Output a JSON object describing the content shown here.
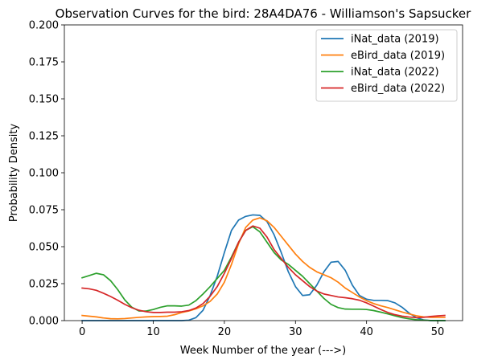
{
  "chart_data": {
    "type": "line",
    "title": "Observation Curves for the bird: 28A4DA76 - Williamson's Sapsucker",
    "xlabel": "Week Number of the year (--->)",
    "ylabel": "Probability Density",
    "xlim": [
      -2.5,
      53.5
    ],
    "ylim": [
      0,
      0.2
    ],
    "xticks": [
      0,
      10,
      20,
      30,
      40,
      50
    ],
    "xtick_labels": [
      "0",
      "10",
      "20",
      "30",
      "40",
      "50"
    ],
    "yticks": [
      0,
      0.025,
      0.05,
      0.075,
      0.1,
      0.125,
      0.15,
      0.175,
      0.2
    ],
    "ytick_labels": [
      "0.000",
      "0.025",
      "0.050",
      "0.075",
      "0.100",
      "0.125",
      "0.150",
      "0.175",
      "0.200"
    ],
    "grid": false,
    "legend_position": "top-right",
    "series": [
      {
        "name": "iNat_data (2019)",
        "color": "#1f77b4",
        "x": [
          0,
          1,
          2,
          3,
          4,
          5,
          6,
          7,
          8,
          9,
          10,
          11,
          12,
          13,
          14,
          15,
          16,
          17,
          18,
          19,
          20,
          21,
          22,
          23,
          24,
          25,
          26,
          27,
          28,
          29,
          30,
          31,
          32,
          33,
          34,
          35,
          36,
          37,
          38,
          39,
          40,
          41,
          42,
          43,
          44,
          45,
          46,
          47,
          48,
          49,
          50,
          51
        ],
        "y": [
          0,
          0,
          0,
          0,
          0,
          0,
          0,
          0,
          0,
          0,
          0,
          0,
          0,
          0,
          0,
          0.0003,
          0.002,
          0.007,
          0.017,
          0.03,
          0.046,
          0.061,
          0.068,
          0.0705,
          0.0715,
          0.0712,
          0.067,
          0.058,
          0.046,
          0.033,
          0.023,
          0.017,
          0.0175,
          0.024,
          0.033,
          0.0395,
          0.04,
          0.034,
          0.024,
          0.017,
          0.0145,
          0.0137,
          0.0137,
          0.0135,
          0.012,
          0.009,
          0.005,
          0.002,
          0.0005,
          0,
          0,
          0
        ]
      },
      {
        "name": "eBird_data (2019)",
        "color": "#ff7f0e",
        "x": [
          0,
          1,
          2,
          3,
          4,
          5,
          6,
          7,
          8,
          9,
          10,
          11,
          12,
          13,
          14,
          15,
          16,
          17,
          18,
          19,
          20,
          21,
          22,
          23,
          24,
          25,
          26,
          27,
          28,
          29,
          30,
          31,
          32,
          33,
          34,
          35,
          36,
          37,
          38,
          39,
          40,
          41,
          42,
          43,
          44,
          45,
          46,
          47,
          48,
          49,
          50,
          51
        ],
        "y": [
          0.0035,
          0.003,
          0.0025,
          0.0018,
          0.0013,
          0.0012,
          0.0014,
          0.0018,
          0.0022,
          0.0025,
          0.0027,
          0.0028,
          0.003,
          0.004,
          0.0055,
          0.0065,
          0.008,
          0.01,
          0.013,
          0.018,
          0.026,
          0.038,
          0.052,
          0.063,
          0.068,
          0.0695,
          0.0675,
          0.063,
          0.057,
          0.051,
          0.045,
          0.04,
          0.036,
          0.033,
          0.031,
          0.029,
          0.026,
          0.022,
          0.019,
          0.016,
          0.0135,
          0.0115,
          0.01,
          0.0088,
          0.0073,
          0.0058,
          0.0045,
          0.0033,
          0.0025,
          0.0022,
          0.0022,
          0.0022
        ]
      },
      {
        "name": "iNat_data (2022)",
        "color": "#2ca02c",
        "x": [
          0,
          1,
          2,
          3,
          4,
          5,
          6,
          7,
          8,
          9,
          10,
          11,
          12,
          13,
          14,
          15,
          16,
          17,
          18,
          19,
          20,
          21,
          22,
          23,
          24,
          25,
          26,
          27,
          28,
          29,
          30,
          31,
          32,
          33,
          34,
          35,
          36,
          37,
          38,
          39,
          40,
          41,
          42,
          43,
          44,
          45,
          46,
          47,
          48,
          49,
          50,
          51
        ],
        "y": [
          0.029,
          0.0305,
          0.032,
          0.031,
          0.027,
          0.021,
          0.014,
          0.009,
          0.0065,
          0.0065,
          0.0075,
          0.009,
          0.01,
          0.01,
          0.0098,
          0.0105,
          0.0135,
          0.018,
          0.023,
          0.0285,
          0.034,
          0.043,
          0.053,
          0.061,
          0.0635,
          0.06,
          0.053,
          0.046,
          0.041,
          0.038,
          0.034,
          0.03,
          0.025,
          0.02,
          0.015,
          0.011,
          0.0088,
          0.0078,
          0.0077,
          0.0077,
          0.0075,
          0.0068,
          0.0057,
          0.0045,
          0.0032,
          0.002,
          0.0012,
          0.0006,
          0.0003,
          0.0001,
          0,
          0
        ]
      },
      {
        "name": "eBird_data (2022)",
        "color": "#d62728",
        "x": [
          0,
          1,
          2,
          3,
          4,
          5,
          6,
          7,
          8,
          9,
          10,
          11,
          12,
          13,
          14,
          15,
          16,
          17,
          18,
          19,
          20,
          21,
          22,
          23,
          24,
          25,
          26,
          27,
          28,
          29,
          30,
          31,
          32,
          33,
          34,
          35,
          36,
          37,
          38,
          39,
          40,
          41,
          42,
          43,
          44,
          45,
          46,
          47,
          48,
          49,
          50,
          51
        ],
        "y": [
          0.022,
          0.0215,
          0.0205,
          0.0185,
          0.0163,
          0.0138,
          0.011,
          0.0087,
          0.007,
          0.006,
          0.0055,
          0.0055,
          0.0057,
          0.0057,
          0.006,
          0.0068,
          0.0085,
          0.0115,
          0.0165,
          0.023,
          0.032,
          0.042,
          0.053,
          0.061,
          0.064,
          0.0625,
          0.0565,
          0.048,
          0.042,
          0.036,
          0.031,
          0.027,
          0.023,
          0.02,
          0.018,
          0.017,
          0.016,
          0.0155,
          0.0148,
          0.0138,
          0.012,
          0.0098,
          0.0075,
          0.0055,
          0.004,
          0.003,
          0.0024,
          0.002,
          0.0022,
          0.0028,
          0.0032,
          0.0035
        ]
      }
    ]
  }
}
